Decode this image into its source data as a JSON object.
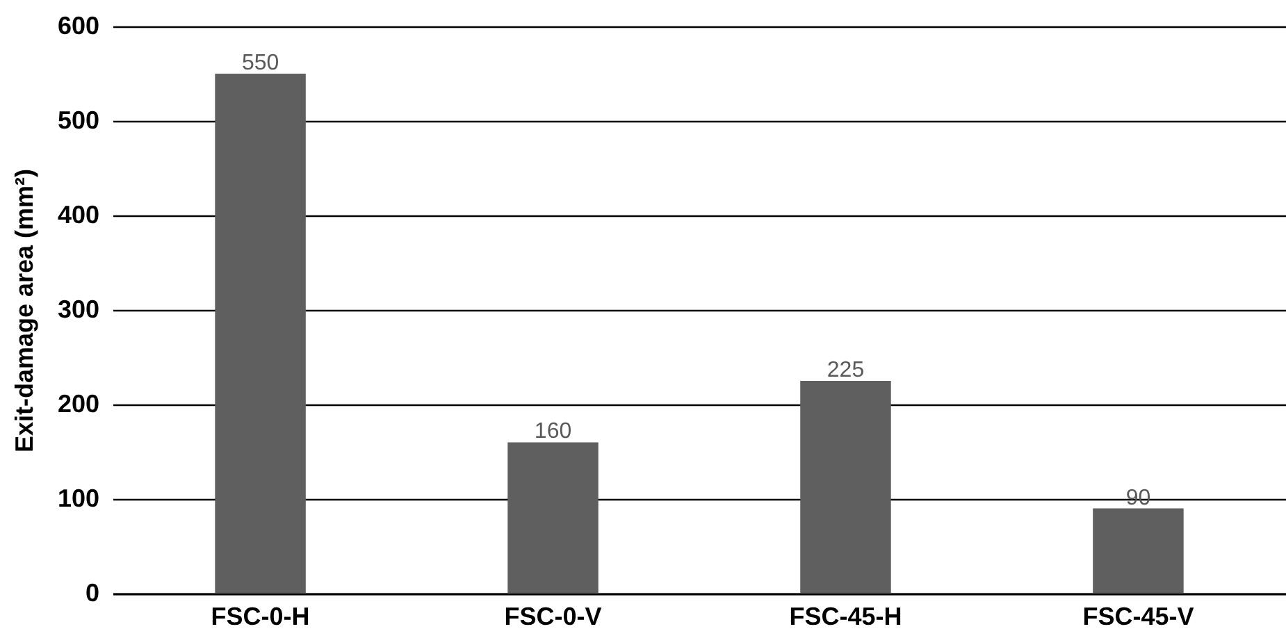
{
  "chart_data": {
    "type": "bar",
    "ylabel": "Exit-damage area (mm²)",
    "categories": [
      "FSC-0-H",
      "FSC-0-V",
      "FSC-45-H",
      "FSC-45-V"
    ],
    "values": [
      550,
      160,
      225,
      90
    ],
    "color": "#5f5f5f",
    "ylim": [
      0,
      600
    ],
    "yticks": [
      0,
      100,
      200,
      300,
      400,
      500,
      600
    ],
    "grid": "y",
    "data_labels": true
  }
}
